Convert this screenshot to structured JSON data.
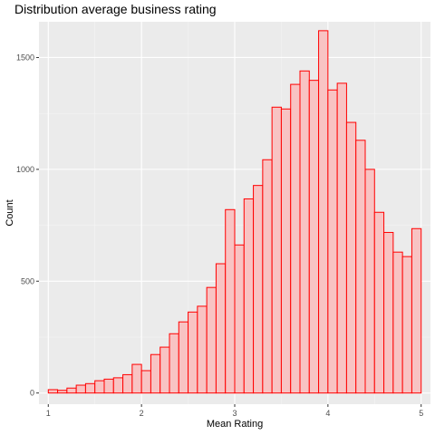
{
  "chart_data": {
    "type": "bar",
    "title": "Distribution average business rating",
    "xlabel": "Mean Rating",
    "ylabel": "Count",
    "xlim": [
      0.9,
      5.1
    ],
    "ylim": [
      -50,
      1660
    ],
    "x_ticks": [
      1,
      2,
      3,
      4,
      5
    ],
    "y_ticks": [
      0,
      500,
      1000,
      1500
    ],
    "grid": true,
    "legend": "none",
    "bin_width": 0.1,
    "bins": [
      {
        "x": 1.05,
        "count": 15
      },
      {
        "x": 1.15,
        "count": 12
      },
      {
        "x": 1.25,
        "count": 22
      },
      {
        "x": 1.35,
        "count": 35
      },
      {
        "x": 1.45,
        "count": 42
      },
      {
        "x": 1.55,
        "count": 55
      },
      {
        "x": 1.65,
        "count": 62
      },
      {
        "x": 1.75,
        "count": 68
      },
      {
        "x": 1.85,
        "count": 82
      },
      {
        "x": 1.95,
        "count": 128
      },
      {
        "x": 2.05,
        "count": 100
      },
      {
        "x": 2.15,
        "count": 172
      },
      {
        "x": 2.25,
        "count": 205
      },
      {
        "x": 2.35,
        "count": 265
      },
      {
        "x": 2.45,
        "count": 318
      },
      {
        "x": 2.55,
        "count": 362
      },
      {
        "x": 2.65,
        "count": 388
      },
      {
        "x": 2.75,
        "count": 472
      },
      {
        "x": 2.85,
        "count": 578
      },
      {
        "x": 2.95,
        "count": 820
      },
      {
        "x": 3.05,
        "count": 662
      },
      {
        "x": 3.15,
        "count": 868
      },
      {
        "x": 3.25,
        "count": 928
      },
      {
        "x": 3.35,
        "count": 1043
      },
      {
        "x": 3.45,
        "count": 1278
      },
      {
        "x": 3.55,
        "count": 1270
      },
      {
        "x": 3.65,
        "count": 1380
      },
      {
        "x": 3.75,
        "count": 1440
      },
      {
        "x": 3.85,
        "count": 1398
      },
      {
        "x": 3.95,
        "count": 1620
      },
      {
        "x": 4.05,
        "count": 1355
      },
      {
        "x": 4.15,
        "count": 1385
      },
      {
        "x": 4.25,
        "count": 1210
      },
      {
        "x": 4.35,
        "count": 1130
      },
      {
        "x": 4.45,
        "count": 1000
      },
      {
        "x": 4.55,
        "count": 808
      },
      {
        "x": 4.65,
        "count": 718
      },
      {
        "x": 4.75,
        "count": 630
      },
      {
        "x": 4.85,
        "count": 610
      },
      {
        "x": 4.95,
        "count": 735
      }
    ],
    "colors": {
      "panel": "#ebebeb",
      "grid_major": "#ffffff",
      "grid_minor": "#f5f5f5",
      "bar_fill": "#f8c3c3",
      "bar_stroke": "#ff0000",
      "tick_text": "#4d4d4d"
    }
  }
}
